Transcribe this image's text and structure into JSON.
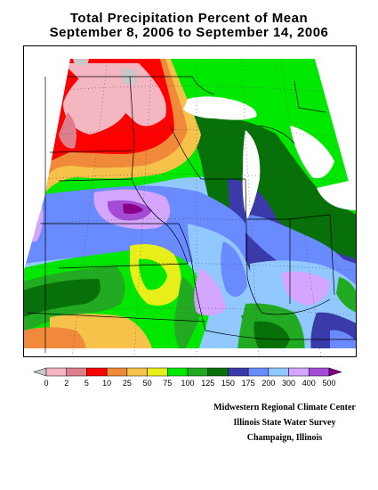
{
  "title_line1": "Total Precipitation Percent of Mean",
  "title_line2": "September 8, 2006 to September 14, 2006",
  "legend": {
    "labels": [
      "0",
      "2",
      "5",
      "10",
      "25",
      "50",
      "75",
      "100",
      "125",
      "150",
      "175",
      "200",
      "300",
      "400",
      "500"
    ],
    "colors": [
      "#c8c8c8",
      "#f4b6c1",
      "#de7d8c",
      "#ff0000",
      "#f08a3a",
      "#f7c24a",
      "#e8ee1a",
      "#00e800",
      "#22aa22",
      "#087008",
      "#3a3aaa",
      "#6a8aff",
      "#90c8ff",
      "#d4a6ff",
      "#a44cd6",
      "#880088"
    ]
  },
  "credits": {
    "line1": "Midwestern Regional Climate Center",
    "line2": "Illinois State Water Survey",
    "line3": "Champaign, Illinois"
  }
}
